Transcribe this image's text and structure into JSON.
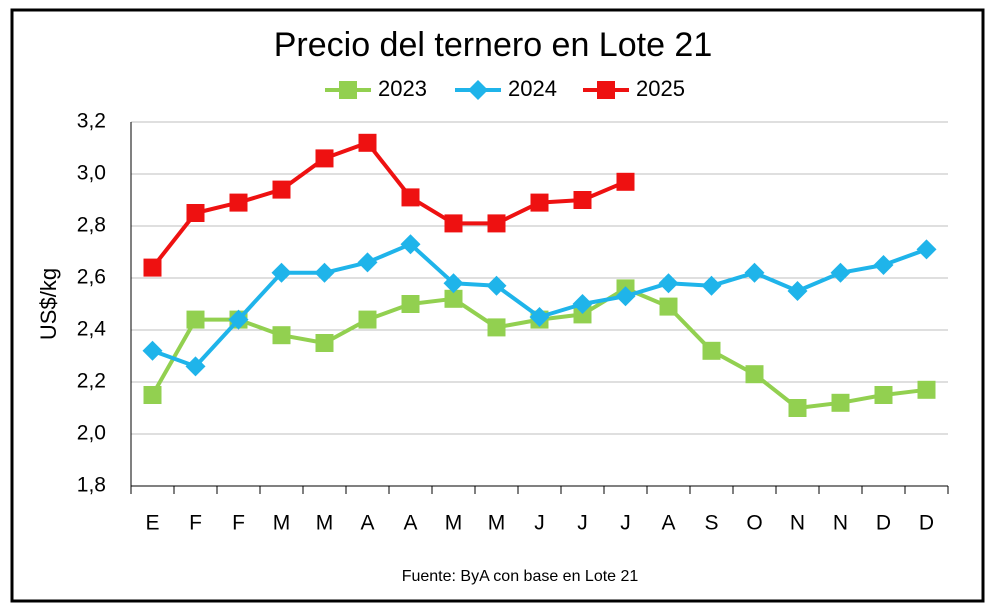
{
  "chart_data": {
    "type": "line",
    "title": "Precio del ternero en Lote 21",
    "y_label": "US$/kg",
    "source": "Fuente: ByA con base en Lote 21",
    "categories": [
      "E",
      "F",
      "F",
      "M",
      "M",
      "A",
      "A",
      "M",
      "M",
      "J",
      "J",
      "J",
      "A",
      "S",
      "O",
      "N",
      "N",
      "D",
      "D"
    ],
    "series": [
      {
        "name": "2023",
        "color": "#92d050",
        "marker": "square",
        "values": [
          2.15,
          2.44,
          2.44,
          2.38,
          2.35,
          2.44,
          2.5,
          2.52,
          2.41,
          2.44,
          2.46,
          2.56,
          2.49,
          2.32,
          2.23,
          2.1,
          2.12,
          2.15,
          2.17
        ]
      },
      {
        "name": "2024",
        "color": "#1fb4ea",
        "marker": "diamond",
        "values": [
          2.32,
          2.26,
          2.44,
          2.62,
          2.62,
          2.66,
          2.73,
          2.58,
          2.57,
          2.45,
          2.5,
          2.53,
          2.58,
          2.57,
          2.62,
          2.55,
          2.62,
          2.65,
          2.71
        ]
      },
      {
        "name": "2025",
        "color": "#ee1111",
        "marker": "square",
        "values": [
          2.64,
          2.85,
          2.89,
          2.94,
          3.06,
          3.12,
          2.91,
          2.81,
          2.81,
          2.89,
          2.9,
          2.97,
          null,
          null,
          null,
          null,
          null,
          null,
          null
        ]
      }
    ],
    "ylim": [
      1.8,
      3.2
    ],
    "yticks": [
      {
        "value": 1.8,
        "label": "1,8"
      },
      {
        "value": 2.0,
        "label": "2,0"
      },
      {
        "value": 2.2,
        "label": "2,2"
      },
      {
        "value": 2.4,
        "label": "2,4"
      },
      {
        "value": 2.6,
        "label": "2,6"
      },
      {
        "value": 2.8,
        "label": "2,8"
      },
      {
        "value": 3.0,
        "label": "3,0"
      },
      {
        "value": 3.2,
        "label": "3,2"
      }
    ],
    "grid": true,
    "legend": "top"
  }
}
